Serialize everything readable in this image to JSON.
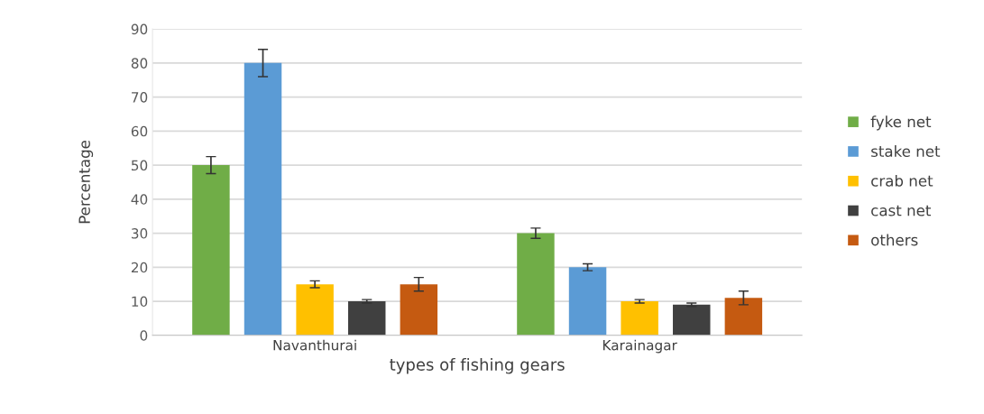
{
  "chart_data": {
    "type": "bar",
    "xlabel": "types of fishing gears",
    "ylabel": "Percentage",
    "categories": [
      "Navanthurai",
      "Karainagar"
    ],
    "series": [
      {
        "name": "fyke net",
        "color": "#70ad47",
        "values": [
          50,
          30
        ],
        "errors": [
          2.5,
          1.5
        ]
      },
      {
        "name": "stake net",
        "color": "#5b9bd5",
        "values": [
          80,
          20
        ],
        "errors": [
          4,
          1
        ]
      },
      {
        "name": "crab net",
        "color": "#ffc000",
        "values": [
          15,
          10
        ],
        "errors": [
          1,
          0.5
        ]
      },
      {
        "name": "cast net",
        "color": "#404040",
        "values": [
          10,
          9
        ],
        "errors": [
          0.5,
          0.5
        ]
      },
      {
        "name": "others",
        "color": "#c55a11",
        "values": [
          15,
          11
        ],
        "errors": [
          2,
          2
        ]
      }
    ],
    "ylim": [
      0,
      90
    ],
    "yticks": [
      0,
      10,
      20,
      30,
      40,
      50,
      60,
      70,
      80,
      90
    ],
    "grid": "y",
    "legend": "right"
  }
}
